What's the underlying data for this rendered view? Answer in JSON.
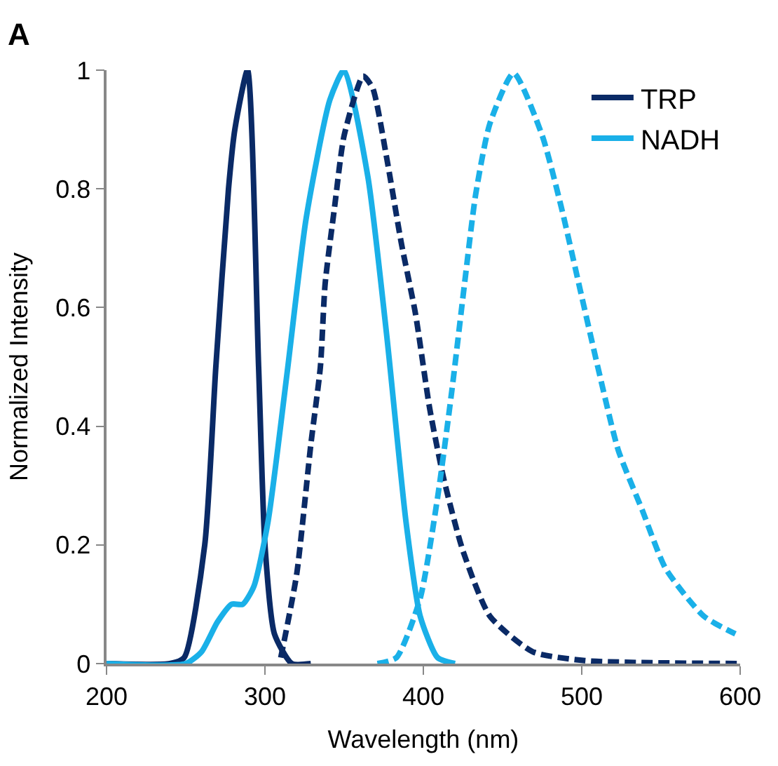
{
  "chart_data": {
    "type": "line",
    "title": "A",
    "xlabel": "Wavelength (nm)",
    "ylabel": "Normalized Intensity",
    "xlim": [
      200,
      600
    ],
    "xticks": [
      200,
      300,
      400,
      500,
      600
    ],
    "ylim": [
      0,
      1
    ],
    "yticks": [
      0,
      0.2,
      0.4,
      0.6,
      0.8,
      1
    ],
    "legend": "top right",
    "marker": "none",
    "series": [
      {
        "name": "TRP",
        "color": "#0a2a66",
        "line_style": "solid",
        "x": [
          200,
          240,
          249,
          262,
          269,
          277,
          281,
          289,
          296,
          300,
          306,
          317,
          329
        ],
        "values": [
          0,
          0,
          0.01,
          0.2,
          0.5,
          0.8,
          0.9,
          1.0,
          0.5,
          0.2,
          0.05,
          0,
          0
        ]
      },
      {
        "name": "NADH",
        "color": "#1ab0e8",
        "line_style": "solid",
        "x": [
          200,
          250,
          260,
          270,
          279,
          286,
          293,
          302,
          314,
          326,
          341,
          350,
          365,
          377,
          389,
          398,
          409,
          420
        ],
        "values": [
          0,
          0,
          0.02,
          0.07,
          0.1,
          0.1,
          0.13,
          0.24,
          0.49,
          0.75,
          0.95,
          1.0,
          0.82,
          0.55,
          0.24,
          0.08,
          0.01,
          0
        ]
      },
      {
        "color": "#0a2a66",
        "line_style": "dashed",
        "x": [
          310,
          320,
          329,
          335,
          338,
          344,
          350,
          362,
          368,
          377,
          386,
          395,
          404,
          413,
          425,
          442,
          469,
          502,
          600
        ],
        "values": [
          0.01,
          0.15,
          0.37,
          0.5,
          0.64,
          0.77,
          0.89,
          0.99,
          0.97,
          0.85,
          0.71,
          0.59,
          0.43,
          0.31,
          0.19,
          0.08,
          0.02,
          0.005,
          0
        ]
      },
      {
        "color": "#1ab0e8",
        "line_style": "dashed",
        "x": [
          371,
          383,
          398,
          409,
          418,
          426,
          433,
          442,
          457,
          475,
          487,
          499,
          511,
          523,
          538,
          553,
          577,
          597
        ],
        "values": [
          0,
          0.01,
          0.11,
          0.28,
          0.46,
          0.64,
          0.79,
          0.91,
          0.995,
          0.89,
          0.77,
          0.63,
          0.49,
          0.36,
          0.26,
          0.16,
          0.08,
          0.05
        ]
      }
    ]
  }
}
